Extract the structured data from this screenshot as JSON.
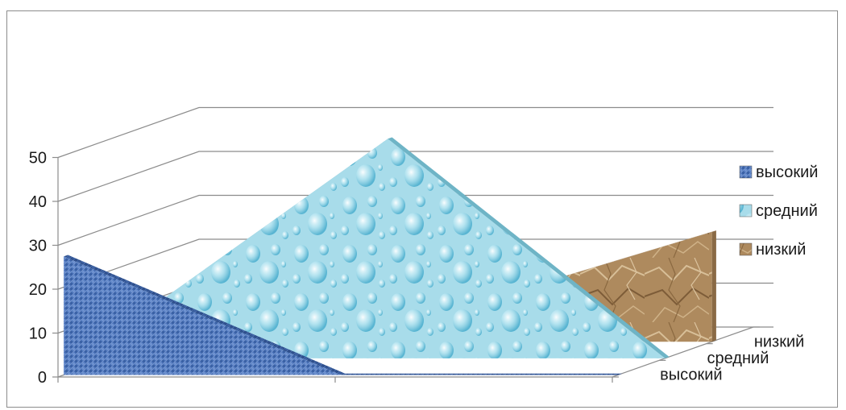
{
  "chart_data": {
    "type": "area",
    "view": "3d",
    "title": "",
    "xlabel": "",
    "ylabel": "",
    "categories": [
      "",
      "",
      ""
    ],
    "ylim": [
      0,
      50
    ],
    "yticks": [
      "0",
      "10",
      "20",
      "30",
      "40",
      "50"
    ],
    "depth_labels": [
      "высокий",
      "средний",
      "низкий"
    ],
    "legend_position": "right",
    "legend": [
      "высокий",
      "средний",
      "низкий"
    ],
    "series": [
      {
        "name": "высокий",
        "values": [
          27,
          0,
          0
        ],
        "texture": "blue-fabric",
        "color": "#4a72b8"
      },
      {
        "name": "средний",
        "values": [
          5,
          50,
          0
        ],
        "texture": "water-drops",
        "color": "#9ed8e8"
      },
      {
        "name": "низкий",
        "values": [
          0,
          6,
          25
        ],
        "texture": "crumpled-paper",
        "color": "#b08a5e"
      }
    ]
  }
}
